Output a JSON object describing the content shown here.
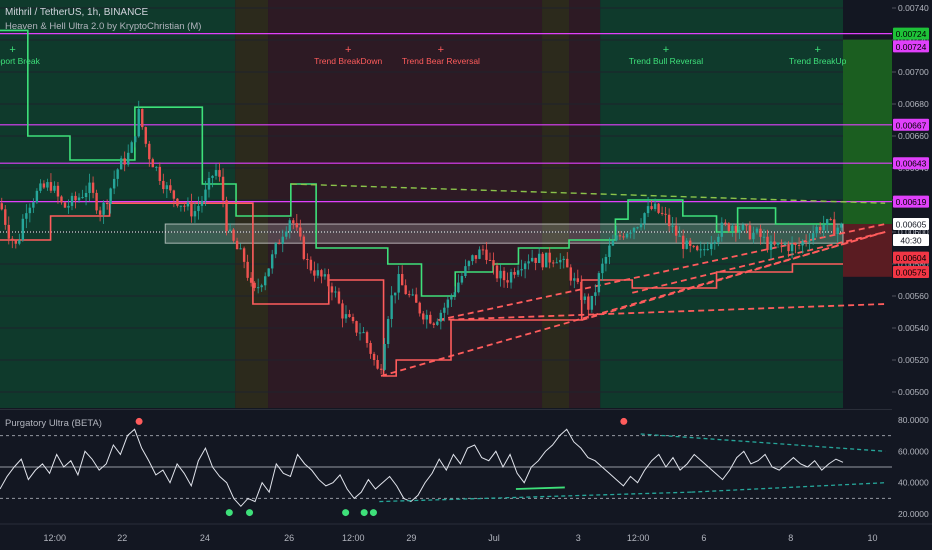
{
  "header": {
    "symbol_line": "Mithril / TetherUS, 1h, BINANCE",
    "indicator_line": "Heaven & Hell Ultra 2.0 by KryptoChristian (M)",
    "oscillator_title": "Purgatory Ultra (BETA)"
  },
  "colors": {
    "background": "#131722",
    "bull_zone": "#0f3a2c",
    "bear_zone": "#2d1a24",
    "neutral_zone": "#2c2a1c",
    "candle_up": "#26a69a",
    "candle_down": "#ef5350",
    "resistance": "#e040fb",
    "trail_green": "#3ee07a",
    "trail_red": "#ff5c5c",
    "axis_text": "#b2b5be"
  },
  "chart_data": [
    {
      "type": "candlestick",
      "title": "Mithril / TetherUS, 1h, BINANCE",
      "ylim": [
        0.0049,
        0.00745
      ],
      "y_ticks": [
        "0.00740",
        "0.00720",
        "0.00700",
        "0.00680",
        "0.00660",
        "0.00640",
        "0.00620",
        "0.00600",
        "0.00580",
        "0.00560",
        "0.00540",
        "0.00520",
        "0.00500"
      ],
      "x_ticks": [
        {
          "label": "12:00",
          "t": 0.065
        },
        {
          "label": "22",
          "t": 0.145
        },
        {
          "label": "24",
          "t": 0.243
        },
        {
          "label": "26",
          "t": 0.343
        },
        {
          "label": "12:00",
          "t": 0.419
        },
        {
          "label": "29",
          "t": 0.488
        },
        {
          "label": "Jul",
          "t": 0.586
        },
        {
          "label": "3",
          "t": 0.686
        },
        {
          "label": "12:00",
          "t": 0.757
        },
        {
          "label": "6",
          "t": 0.835
        },
        {
          "label": "8",
          "t": 0.938
        },
        {
          "label": "10",
          "t": 1.035
        }
      ],
      "close_path": [
        [
          0.0,
          0.00618
        ],
        [
          0.01,
          0.006
        ],
        [
          0.02,
          0.0059
        ],
        [
          0.03,
          0.00615
        ],
        [
          0.045,
          0.00625
        ],
        [
          0.06,
          0.0063
        ],
        [
          0.075,
          0.00615
        ],
        [
          0.09,
          0.0062
        ],
        [
          0.105,
          0.00628
        ],
        [
          0.12,
          0.00612
        ],
        [
          0.14,
          0.0064
        ],
        [
          0.155,
          0.0065
        ],
        [
          0.165,
          0.00675
        ],
        [
          0.175,
          0.0065
        ],
        [
          0.185,
          0.0064
        ],
        [
          0.2,
          0.00625
        ],
        [
          0.215,
          0.00618
        ],
        [
          0.23,
          0.00612
        ],
        [
          0.245,
          0.00625
        ],
        [
          0.255,
          0.0064
        ],
        [
          0.262,
          0.0063
        ],
        [
          0.27,
          0.006
        ],
        [
          0.28,
          0.0059
        ],
        [
          0.29,
          0.00582
        ],
        [
          0.3,
          0.0056
        ],
        [
          0.31,
          0.0057
        ],
        [
          0.32,
          0.0058
        ],
        [
          0.335,
          0.006
        ],
        [
          0.345,
          0.0061
        ],
        [
          0.355,
          0.00595
        ],
        [
          0.365,
          0.0058
        ],
        [
          0.38,
          0.00572
        ],
        [
          0.395,
          0.00565
        ],
        [
          0.405,
          0.0055
        ],
        [
          0.42,
          0.0054
        ],
        [
          0.43,
          0.00538
        ],
        [
          0.44,
          0.00525
        ],
        [
          0.45,
          0.0051
        ],
        [
          0.455,
          0.0053
        ],
        [
          0.462,
          0.00555
        ],
        [
          0.472,
          0.0057
        ],
        [
          0.485,
          0.0056
        ],
        [
          0.5,
          0.0055
        ],
        [
          0.515,
          0.00545
        ],
        [
          0.53,
          0.00555
        ],
        [
          0.545,
          0.0057
        ],
        [
          0.56,
          0.00583
        ],
        [
          0.575,
          0.0059
        ],
        [
          0.585,
          0.00575
        ],
        [
          0.6,
          0.0057
        ],
        [
          0.615,
          0.0058
        ],
        [
          0.63,
          0.00585
        ],
        [
          0.645,
          0.00582
        ],
        [
          0.66,
          0.00585
        ],
        [
          0.675,
          0.00575
        ],
        [
          0.69,
          0.0056
        ],
        [
          0.7,
          0.00552
        ],
        [
          0.712,
          0.00575
        ],
        [
          0.725,
          0.00592
        ],
        [
          0.74,
          0.006
        ],
        [
          0.755,
          0.00605
        ],
        [
          0.765,
          0.00612
        ],
        [
          0.775,
          0.00615
        ],
        [
          0.79,
          0.00608
        ],
        [
          0.8,
          0.006
        ],
        [
          0.815,
          0.0059
        ],
        [
          0.83,
          0.00585
        ],
        [
          0.842,
          0.00595
        ],
        [
          0.855,
          0.00602
        ],
        [
          0.87,
          0.00605
        ],
        [
          0.885,
          0.006
        ],
        [
          0.9,
          0.00598
        ],
        [
          0.915,
          0.0059
        ],
        [
          0.93,
          0.00592
        ],
        [
          0.945,
          0.0059
        ],
        [
          0.96,
          0.00598
        ],
        [
          0.975,
          0.00605
        ],
        [
          0.99,
          0.00603
        ]
      ],
      "price_labels": [
        {
          "text": "0.00724",
          "price": 0.00724,
          "color": "#1ec238",
          "text_color": "#000000"
        },
        {
          "text": "0.00724",
          "price": 0.00716,
          "color": "#e040fb",
          "text_color": "#000000"
        },
        {
          "text": "0.00667",
          "price": 0.00667,
          "color": "#e040fb",
          "text_color": "#000000"
        },
        {
          "text": "0.00643",
          "price": 0.00643,
          "color": "#e040fb",
          "text_color": "#000000"
        },
        {
          "text": "0.00619",
          "price": 0.00619,
          "color": "#e040fb",
          "text_color": "#000000"
        },
        {
          "text": "0.00605",
          "price": 0.00605,
          "color": "#ffffff",
          "text_color": "#131722"
        },
        {
          "text": "40:30",
          "price": 0.00595,
          "color": "#ffffff",
          "text_color": "#131722"
        },
        {
          "text": "0.00604",
          "price": 0.00584,
          "color": "#f23645",
          "text_color": "#000000"
        },
        {
          "text": "0.00575",
          "price": 0.00575,
          "color": "#f23645",
          "text_color": "#000000"
        }
      ],
      "resistance_levels": [
        0.00724,
        0.00667,
        0.00643,
        0.00619
      ],
      "signals": [
        {
          "label": "Support Break",
          "t": 0.015,
          "type": "bull"
        },
        {
          "label": "Trend BreakDown",
          "t": 0.413,
          "type": "bear"
        },
        {
          "label": "Trend Bear Reversal",
          "t": 0.523,
          "type": "bear"
        },
        {
          "label": "Trend Bull Reversal",
          "t": 0.79,
          "type": "bull"
        },
        {
          "label": "Trend BreakUp",
          "t": 0.97,
          "type": "bull"
        }
      ]
    },
    {
      "type": "line",
      "title": "Purgatory Ultra (BETA)",
      "ylim": [
        15,
        85
      ],
      "y_ticks": [
        "80.0000",
        "60.0000",
        "40.0000",
        "20.0000"
      ],
      "levels": [
        70,
        50,
        30
      ],
      "values": [
        36,
        44,
        50,
        55,
        42,
        48,
        52,
        46,
        58,
        50,
        54,
        45,
        60,
        55,
        48,
        52,
        64,
        58,
        70,
        74,
        62,
        54,
        45,
        48,
        40,
        52,
        46,
        38,
        54,
        62,
        50,
        44,
        40,
        30,
        25,
        30,
        28,
        40,
        34,
        52,
        46,
        44,
        58,
        52,
        48,
        42,
        38,
        40,
        45,
        36,
        30,
        34,
        42,
        36,
        40,
        44,
        38,
        30,
        28,
        32,
        40,
        46,
        55,
        48,
        58,
        52,
        62,
        64,
        56,
        54,
        60,
        50,
        58,
        46,
        40,
        50,
        54,
        60,
        64,
        70,
        74,
        66,
        62,
        56,
        54,
        50,
        46,
        42,
        38,
        44,
        40,
        48,
        54,
        58,
        50,
        56,
        48,
        52,
        58,
        54,
        50,
        46,
        42,
        48,
        56,
        60,
        52,
        54,
        58,
        50,
        48,
        52,
        56,
        52,
        50,
        54,
        48,
        52,
        55,
        53
      ],
      "buy_markers_t": [
        0.272,
        0.296,
        0.41,
        0.432,
        0.443
      ],
      "sell_markers_t": [
        0.165,
        0.74
      ]
    }
  ]
}
